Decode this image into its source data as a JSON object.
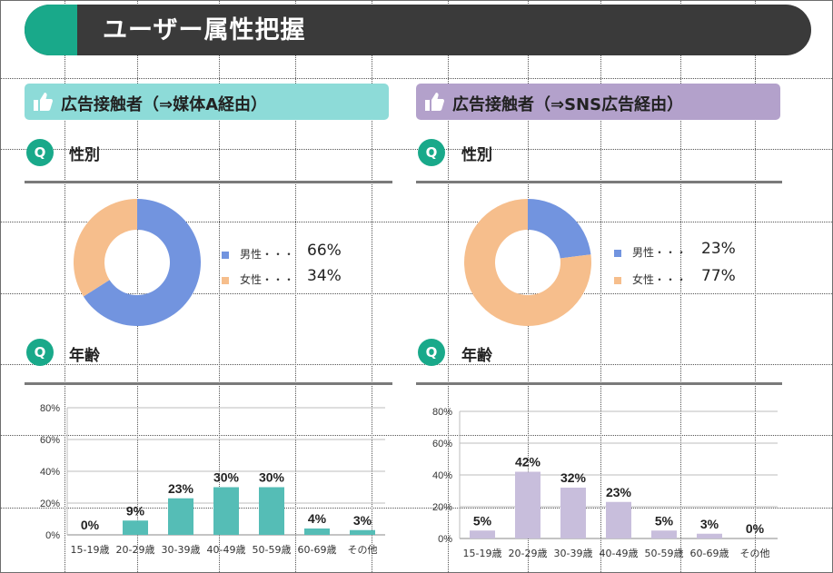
{
  "header": {
    "title": "ユーザー属性把握"
  },
  "panels": [
    {
      "title": "広告接触者（⇒媒体A経由）",
      "gender_heading": "性別",
      "age_heading": "年齢",
      "q_label": "Q",
      "legend": [
        {
          "label": "男性・・・",
          "value": "66%"
        },
        {
          "label": "女性・・・",
          "value": "34%"
        }
      ]
    },
    {
      "title": "広告接触者（⇒SNS広告経由）",
      "gender_heading": "性別",
      "age_heading": "年齢",
      "q_label": "Q",
      "legend": [
        {
          "label": "男性・・・",
          "value": "23%"
        },
        {
          "label": "女性・・・",
          "value": "77%"
        }
      ]
    }
  ],
  "colors": {
    "header_bg": "#3a3a3a",
    "accent": "#19a98a",
    "panel1_head": "#8ddbd8",
    "panel2_head": "#b3a1cb",
    "male": "#7294df",
    "female": "#f6be8c",
    "bar1": "#55bdb6",
    "bar2": "#c8bedc"
  },
  "chart_data": [
    {
      "type": "pie",
      "categories": [
        "男性",
        "女性"
      ],
      "values": [
        66,
        34
      ]
    },
    {
      "type": "pie",
      "categories": [
        "男性",
        "女性"
      ],
      "values": [
        23,
        77
      ]
    },
    {
      "type": "bar",
      "categories": [
        "15-19歳",
        "20-29歳",
        "30-39歳",
        "40-49歳",
        "50-59歳",
        "60-69歳",
        "その他"
      ],
      "values": [
        0,
        9,
        23,
        30,
        30,
        4,
        3
      ],
      "yticks": [
        "0%",
        "20%",
        "40%",
        "60%",
        "80%"
      ],
      "ylim": [
        0,
        80
      ],
      "grid": true
    },
    {
      "type": "bar",
      "categories": [
        "15-19歳",
        "20-29歳",
        "30-39歳",
        "40-49歳",
        "50-59歳",
        "60-69歳",
        "その他"
      ],
      "values": [
        5,
        42,
        32,
        23,
        5,
        3,
        0
      ],
      "yticks": [
        "0%",
        "20%",
        "40%",
        "60%",
        "80%"
      ],
      "ylim": [
        0,
        80
      ],
      "grid": true
    }
  ]
}
